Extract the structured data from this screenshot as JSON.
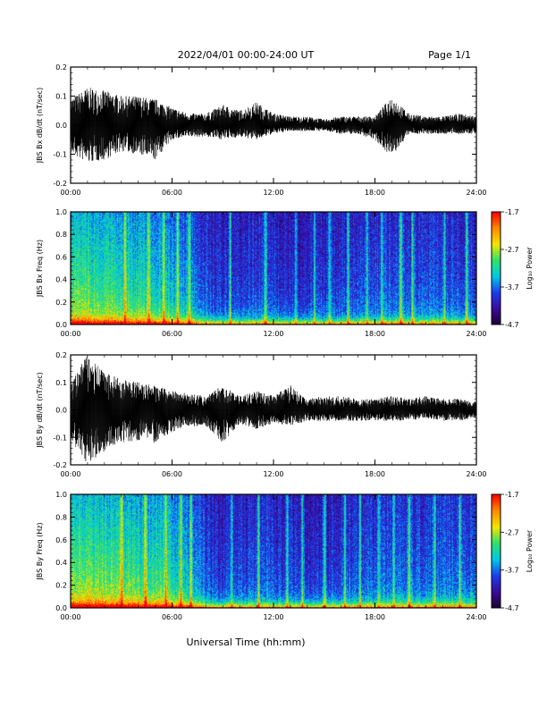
{
  "header": {
    "date_range": "2022/04/01  00:00-24:00 UT",
    "page": "Page 1/1"
  },
  "footer": {
    "xlabel": "Universal Time (hh:mm)"
  },
  "colors": {
    "background": "#ffffff",
    "trace": "#000000",
    "spectrogram_scale": [
      "#1a0030",
      "#3a0a9a",
      "#1c3cf0",
      "#00c8e6",
      "#2be36a",
      "#f2e600",
      "#ff8a00",
      "#ff0000"
    ]
  },
  "chart_data": [
    {
      "type": "line",
      "title": "",
      "xlabel": "",
      "ylabel": "JBS Bx dB/dt (nT/sec)",
      "xticks": [
        "00:00",
        "06:00",
        "12:00",
        "18:00",
        "24:00"
      ],
      "yticks": [
        "0.2",
        "0.1",
        "0.0",
        "-0.1",
        "-0.2"
      ],
      "xlim": [
        0,
        24
      ],
      "ylim": [
        -0.2,
        0.2
      ],
      "series": [
        {
          "x": [
            0,
            1,
            2,
            3,
            4,
            5,
            6,
            7,
            8,
            9,
            10,
            11,
            12,
            13,
            14,
            15,
            16,
            17,
            18,
            19,
            20,
            21,
            22,
            23,
            24
          ],
          "envelope_max": [
            0.09,
            0.13,
            0.12,
            0.1,
            0.1,
            0.09,
            0.06,
            0.04,
            0.04,
            0.07,
            0.05,
            0.08,
            0.04,
            0.03,
            0.03,
            0.02,
            0.03,
            0.03,
            0.03,
            0.1,
            0.04,
            0.03,
            0.03,
            0.04,
            0.03
          ],
          "envelope_min": [
            -0.1,
            -0.13,
            -0.12,
            -0.09,
            -0.1,
            -0.12,
            -0.05,
            -0.04,
            -0.04,
            -0.05,
            -0.04,
            -0.05,
            -0.03,
            -0.02,
            -0.02,
            -0.02,
            -0.03,
            -0.03,
            -0.05,
            -0.11,
            -0.03,
            -0.03,
            -0.03,
            -0.03,
            -0.03
          ]
        }
      ]
    },
    {
      "type": "heatmap",
      "title": "",
      "xlabel": "",
      "ylabel": "JBS Bx Freq (Hz)",
      "xticks": [
        "00:00",
        "06:00",
        "12:00",
        "18:00",
        "24:00"
      ],
      "yticks": [
        "1.0",
        "0.8",
        "0.6",
        "0.4",
        "0.2",
        "0.0"
      ],
      "xlim": [
        0,
        24
      ],
      "ylim": [
        0,
        1.0
      ],
      "colorbar": {
        "label": "Log₁₀ Power",
        "ticks": [
          "-1.7",
          "-2.7",
          "-3.7",
          "-4.7"
        ],
        "range": [
          -4.7,
          -1.7
        ]
      },
      "hour_activity": [
        0.9,
        0.88,
        0.85,
        0.8,
        0.78,
        0.72,
        0.65,
        0.5,
        0.3,
        0.35,
        0.35,
        0.4,
        0.32,
        0.3,
        0.32,
        0.35,
        0.35,
        0.38,
        0.4,
        0.45,
        0.42,
        0.38,
        0.4,
        0.4
      ],
      "stripe_hours": [
        3.2,
        4.6,
        5.5,
        6.3,
        7.0,
        9.4,
        11.5,
        13.3,
        14.4,
        15.3,
        16.4,
        17.5,
        18.4,
        19.5,
        20.2,
        22.1,
        23.4
      ]
    },
    {
      "type": "line",
      "title": "",
      "xlabel": "",
      "ylabel": "JBS By dB/dt (nT/sec)",
      "xticks": [
        "00:00",
        "06:00",
        "12:00",
        "18:00",
        "24:00"
      ],
      "yticks": [
        "0.2",
        "0.1",
        "0.0",
        "-0.1",
        "-0.2"
      ],
      "xlim": [
        0,
        24
      ],
      "ylim": [
        -0.2,
        0.2
      ],
      "series": [
        {
          "x": [
            0,
            1,
            2,
            3,
            4,
            5,
            6,
            7,
            8,
            9,
            10,
            11,
            12,
            13,
            14,
            15,
            16,
            17,
            18,
            19,
            20,
            21,
            22,
            23,
            24
          ],
          "envelope_max": [
            0.1,
            0.2,
            0.14,
            0.11,
            0.1,
            0.09,
            0.07,
            0.06,
            0.05,
            0.09,
            0.05,
            0.07,
            0.05,
            0.09,
            0.04,
            0.05,
            0.05,
            0.04,
            0.04,
            0.05,
            0.04,
            0.05,
            0.04,
            0.04,
            0.03
          ],
          "envelope_min": [
            -0.11,
            -0.2,
            -0.16,
            -0.12,
            -0.11,
            -0.12,
            -0.08,
            -0.06,
            -0.06,
            -0.12,
            -0.05,
            -0.07,
            -0.05,
            -0.06,
            -0.04,
            -0.04,
            -0.04,
            -0.04,
            -0.04,
            -0.04,
            -0.04,
            -0.03,
            -0.04,
            -0.04,
            -0.03
          ]
        }
      ]
    },
    {
      "type": "heatmap",
      "title": "",
      "xlabel": "Universal Time (hh:mm)",
      "ylabel": "JBS By Freq (Hz)",
      "xticks": [
        "00:00",
        "06:00",
        "12:00",
        "18:00",
        "24:00"
      ],
      "yticks": [
        "1.0",
        "0.8",
        "0.6",
        "0.4",
        "0.2",
        "0.0"
      ],
      "xlim": [
        0,
        24
      ],
      "ylim": [
        0,
        1.0
      ],
      "colorbar": {
        "label": "Log₁₀ Power",
        "ticks": [
          "-1.7",
          "-2.7",
          "-3.7",
          "-4.7"
        ],
        "range": [
          -4.7,
          -1.7
        ]
      },
      "hour_activity": [
        0.95,
        0.92,
        0.9,
        0.85,
        0.82,
        0.78,
        0.7,
        0.55,
        0.32,
        0.38,
        0.35,
        0.42,
        0.34,
        0.32,
        0.34,
        0.36,
        0.38,
        0.4,
        0.42,
        0.46,
        0.44,
        0.42,
        0.44,
        0.45
      ],
      "stripe_hours": [
        3.0,
        4.4,
        5.6,
        6.5,
        7.1,
        9.5,
        11.1,
        12.8,
        13.7,
        15.0,
        16.2,
        17.1,
        18.2,
        19.1,
        20.0,
        21.5,
        23.0
      ]
    }
  ]
}
